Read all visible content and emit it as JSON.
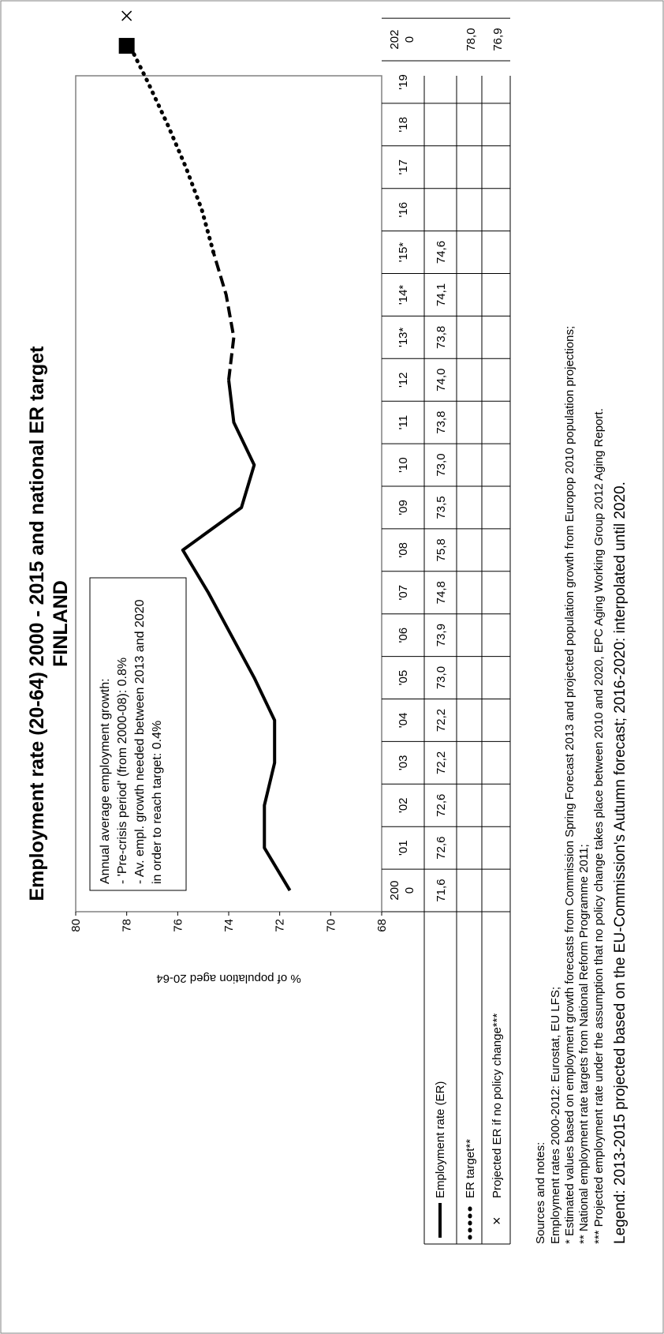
{
  "chart_data": {
    "type": "line",
    "title": "Employment rate (20-64) 2000 - 2015 and national ER target",
    "subtitle": "FINLAND",
    "ylabel": "% of population aged 20-64",
    "ylim": [
      68,
      80
    ],
    "y_ticks": [
      "68",
      "70",
      "72",
      "74",
      "76",
      "78",
      "80"
    ],
    "categories": [
      "200\n0",
      "'01",
      "'02",
      "'03",
      "'04",
      "'05",
      "'06",
      "'07",
      "'08",
      "'09",
      "'10",
      "'11",
      "'12",
      "'13*",
      "'14*",
      "'15*",
      "'16",
      "'17",
      "'18",
      "'19",
      "202\n0"
    ],
    "series": [
      {
        "name": "Employment rate (ER)",
        "values": [
          71.6,
          72.6,
          72.6,
          72.2,
          72.2,
          73.0,
          73.9,
          74.8,
          75.8,
          73.5,
          73.0,
          73.8,
          74.0,
          73.8,
          74.1,
          74.6,
          null,
          null,
          null,
          null,
          null
        ],
        "labels": [
          "71,6",
          "72,6",
          "72,6",
          "72,2",
          "72,2",
          "73,0",
          "73,9",
          "74,8",
          "75,8",
          "73,5",
          "73,0",
          "73,8",
          "74,0",
          "73,8",
          "74,1",
          "74,6",
          "",
          "",
          "",
          "",
          ""
        ]
      },
      {
        "name": "ER target**",
        "values": [
          null,
          null,
          null,
          null,
          null,
          null,
          null,
          null,
          null,
          null,
          null,
          null,
          null,
          null,
          null,
          null,
          null,
          null,
          null,
          null,
          78.0
        ],
        "labels": [
          "",
          "",
          "",
          "",
          "",
          "",
          "",
          "",
          "",
          "",
          "",
          "",
          "",
          "",
          "",
          "",
          "",
          "",
          "",
          "",
          "78,0"
        ]
      },
      {
        "name": "Projected ER if no policy change***",
        "values": [
          null,
          null,
          null,
          null,
          null,
          null,
          null,
          null,
          null,
          null,
          null,
          null,
          null,
          null,
          null,
          null,
          null,
          null,
          null,
          null,
          76.9
        ],
        "labels": [
          "",
          "",
          "",
          "",
          "",
          "",
          "",
          "",
          "",
          "",
          "",
          "",
          "",
          "",
          "",
          "",
          "",
          "",
          "",
          "",
          "76,9"
        ]
      }
    ],
    "annotation": [
      "Annual average employment growth:",
      "- 'Pre-crisis period' (from 2000-08): 0.8%",
      "- Av. empl. growth needed between 2013 and 2020",
      "in order to reach target: 0.4%"
    ],
    "grid": false,
    "legend_position": "data-table"
  },
  "colors": {
    "line": "#000000",
    "target_marker": "#000000",
    "frame": "#808080"
  },
  "notes": [
    "Sources and notes:",
    "Employment rates 2000-2012: Eurostat, EU LFS;",
    "* Estimated values based on employment growth forecasts from Commission Spring Forecast 2013 and projected population growth from Europop 2010 population projections;",
    "** National employment rate targets from National Reform Programme 2011;",
    "*** Projected employment rate under the assumption that no policy change takes place between 2010 and 2020, EPC Aging Working Group 2012 Aging Report.",
    "Legend: 2013-2015 projected based on the EU-Commission's Autumn forecast; 2016-2020: interpolated until 2020."
  ]
}
